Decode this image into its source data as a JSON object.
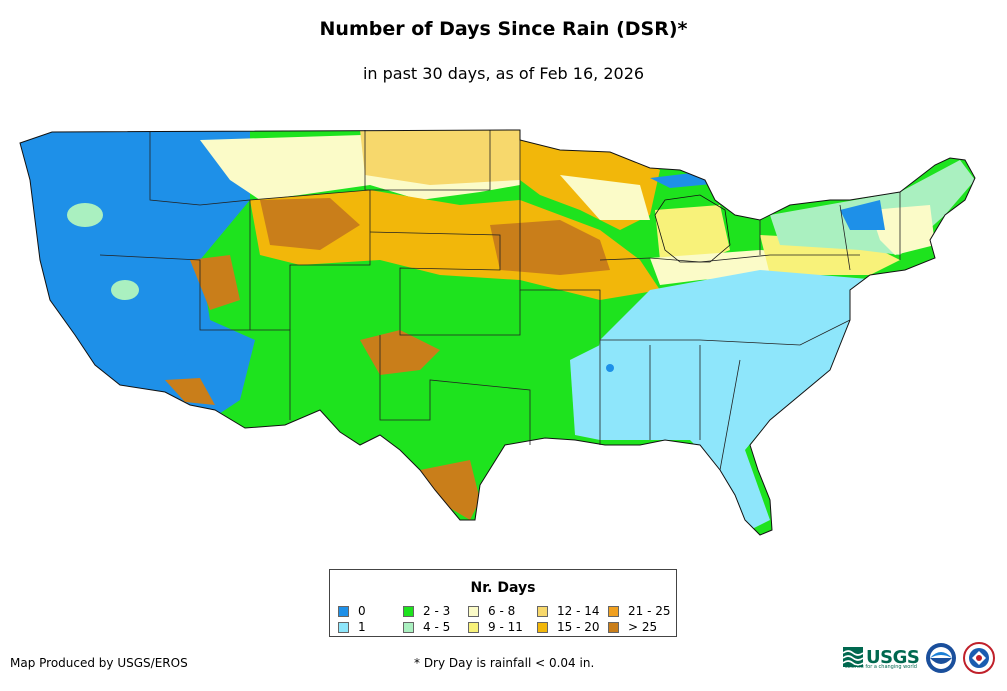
{
  "title": "Number of Days Since Rain (DSR)*",
  "subtitle": "in past 30 days, as of Feb 16, 2026",
  "legend": {
    "title": "Nr. Days",
    "items": [
      {
        "label": "0",
        "color": "#1e90e8"
      },
      {
        "label": "1",
        "color": "#8ee6fb"
      },
      {
        "label": "2 - 3",
        "color": "#1ee31e"
      },
      {
        "label": "4 - 5",
        "color": "#aaf0c0"
      },
      {
        "label": "6 - 8",
        "color": "#fbfbc8"
      },
      {
        "label": "9 - 11",
        "color": "#f8f27a"
      },
      {
        "label": "12 - 14",
        "color": "#f7d86c"
      },
      {
        "label": "15 - 20",
        "color": "#f2b70a"
      },
      {
        "label": "21 - 25",
        "color": "#f0a020"
      },
      {
        "label": "> 25",
        "color": "#c97e1a"
      }
    ]
  },
  "credit": "Map Produced by USGS/EROS",
  "footnote": "* Dry Day is rainfall < 0.04 in.",
  "logos": {
    "usgs": {
      "text": "USGS",
      "tagline": "science for a changing world",
      "icon": "usgs-wave-icon"
    },
    "noaa": {
      "icon": "noaa-seal-icon"
    },
    "nws": {
      "icon": "nws-seal-icon"
    }
  }
}
